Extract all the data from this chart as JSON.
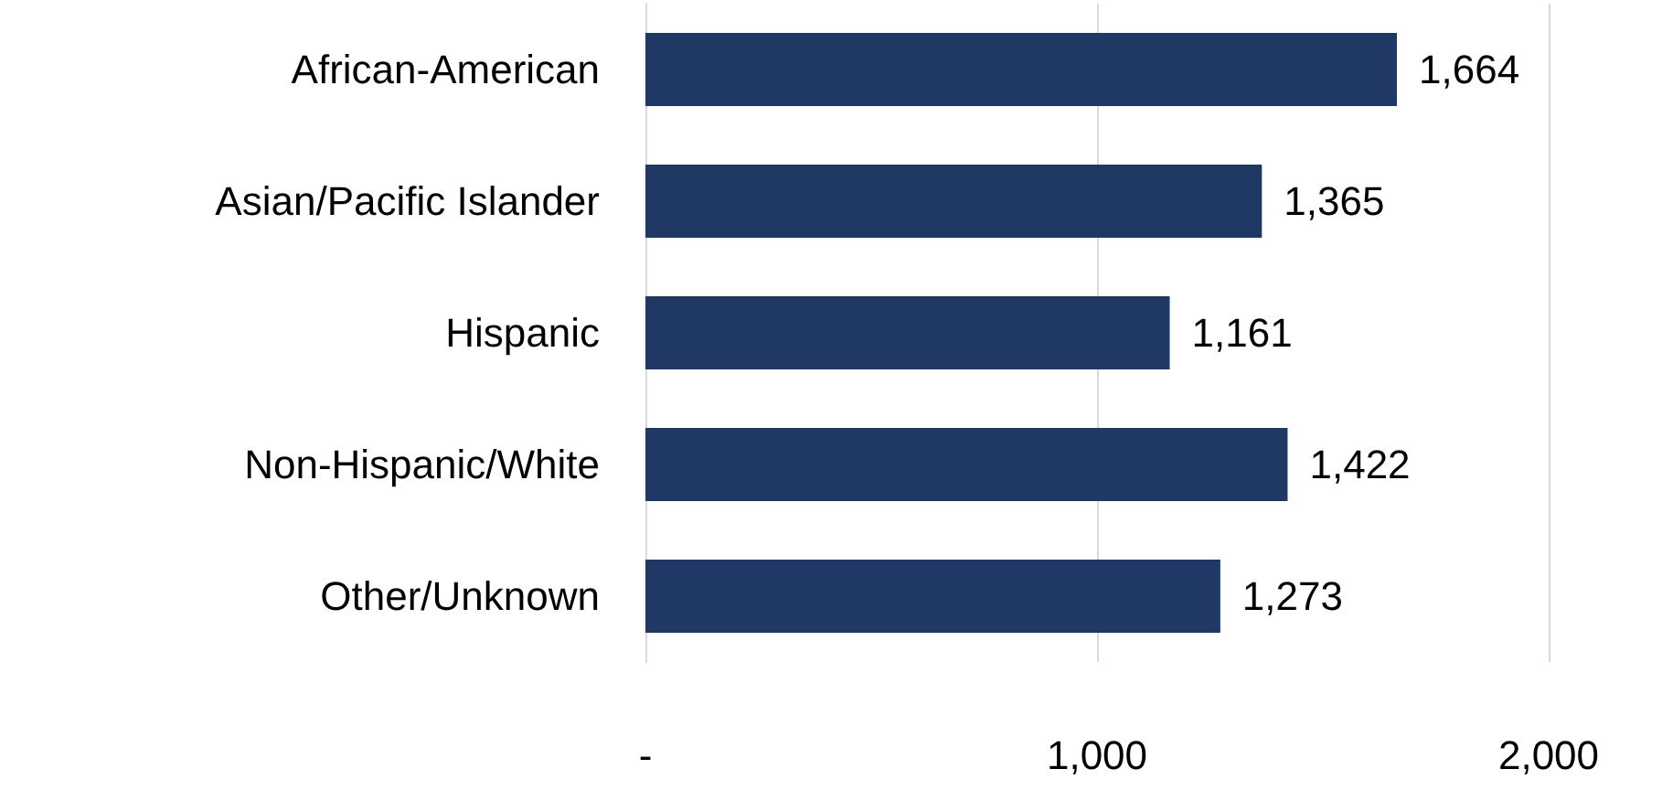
{
  "chart_data": {
    "type": "bar",
    "orientation": "horizontal",
    "categories": [
      "African-American",
      "Asian/Pacific Islander",
      "Hispanic",
      "Non-Hispanic/White",
      "Other/Unknown"
    ],
    "values": [
      1664,
      1365,
      1161,
      1422,
      1273
    ],
    "value_labels": [
      "1,664",
      "1,365",
      "1,161",
      "1,422",
      "1,273"
    ],
    "color": "#1f3864",
    "xlim": [
      0,
      2000
    ],
    "xticks": [
      {
        "value": 0,
        "label": "-"
      },
      {
        "value": 1000,
        "label": "1,000"
      },
      {
        "value": 2000,
        "label": "2,000"
      }
    ],
    "grid": "x"
  }
}
